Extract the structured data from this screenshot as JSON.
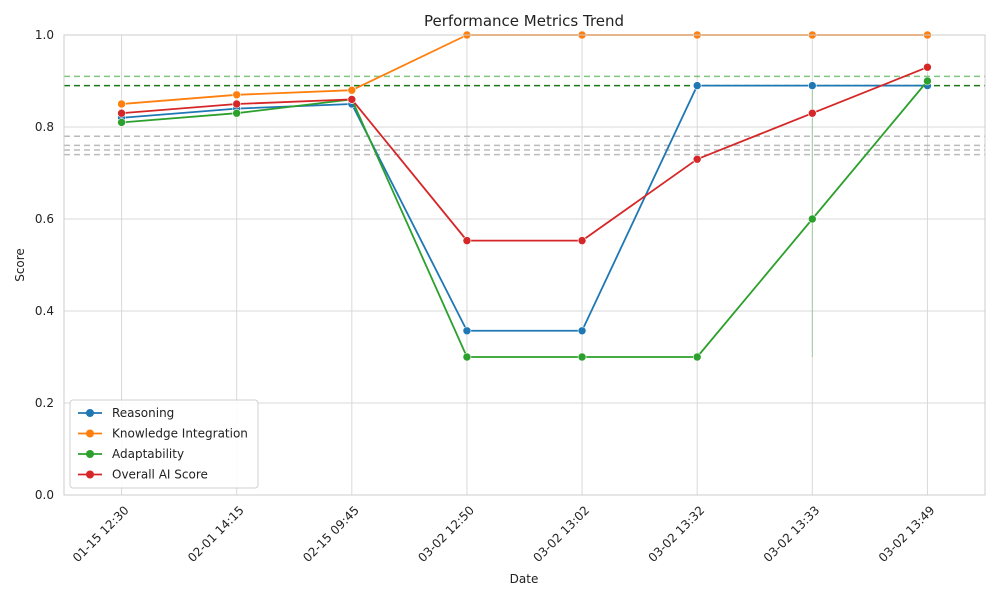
{
  "chart_data": {
    "type": "line",
    "title": "Performance Metrics Trend",
    "xlabel": "Date",
    "ylabel": "Score",
    "ylim": [
      0,
      1.0
    ],
    "yticks": [
      "0.0",
      "0.2",
      "0.4",
      "0.6",
      "0.8",
      "1.0"
    ],
    "categories": [
      "01-15 12:30",
      "02-01 14:15",
      "02-15 09:45",
      "03-02 12:50",
      "03-02 13:02",
      "03-02 13:32",
      "03-02 13:33",
      "03-02 13:49"
    ],
    "grid": true,
    "legend_position": "lower-left",
    "series": [
      {
        "name": "Reasoning",
        "color": "#1f77b4",
        "values": [
          0.82,
          0.84,
          0.85,
          0.357,
          0.357,
          0.89,
          0.89,
          0.89
        ]
      },
      {
        "name": "Knowledge Integration",
        "color": "#ff7f0e",
        "values": [
          0.85,
          0.87,
          0.88,
          1.0,
          1.0,
          1.0,
          1.0,
          1.0
        ]
      },
      {
        "name": "Adaptability",
        "color": "#2ca02c",
        "values": [
          0.81,
          0.83,
          0.86,
          0.3,
          0.3,
          0.3,
          0.6,
          0.9
        ]
      },
      {
        "name": "Overall AI Score",
        "color": "#d62728",
        "values": [
          0.83,
          0.85,
          0.86,
          0.553,
          0.553,
          0.73,
          0.83,
          0.93
        ]
      }
    ],
    "reference_lines": [
      {
        "y": 0.91,
        "color": "#2ca02c",
        "style": "dashed",
        "opacity": 0.6
      },
      {
        "y": 0.89,
        "color": "#1a7a1a",
        "style": "dashed",
        "opacity": 1.0
      },
      {
        "y": 0.78,
        "color": "#aaaaaa",
        "style": "dashed",
        "opacity": 0.8
      },
      {
        "y": 0.76,
        "color": "#aaaaaa",
        "style": "dashed",
        "opacity": 0.8
      },
      {
        "y": 0.75,
        "color": "#aaaaaa",
        "style": "dashed",
        "opacity": 0.8
      },
      {
        "y": 0.74,
        "color": "#aaaaaa",
        "style": "dashed",
        "opacity": 0.8
      }
    ]
  }
}
